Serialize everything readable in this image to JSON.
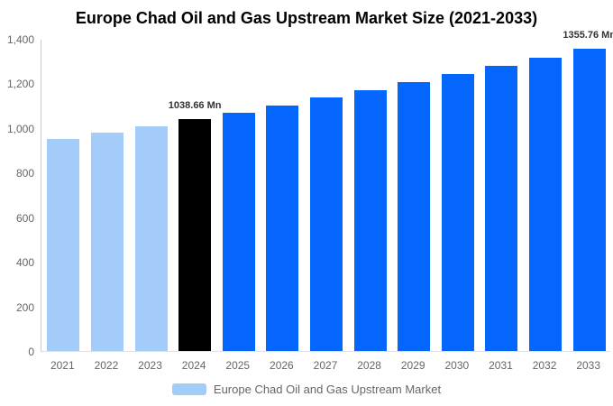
{
  "chart_data": {
    "type": "bar",
    "title": "Europe Chad Oil and Gas Upstream Market Size (2021-2033)",
    "unit": "Mn",
    "categories": [
      "2021",
      "2022",
      "2023",
      "2024",
      "2025",
      "2026",
      "2027",
      "2028",
      "2029",
      "2030",
      "2031",
      "2032",
      "2033"
    ],
    "values": [
      950.4,
      979.0,
      1008.4,
      1038.66,
      1069.9,
      1102.0,
      1135.2,
      1169.3,
      1204.5,
      1240.7,
      1278.0,
      1316.4,
      1355.76
    ],
    "bar_roles": [
      "historical",
      "historical",
      "historical",
      "highlight",
      "forecast",
      "forecast",
      "forecast",
      "forecast",
      "forecast",
      "forecast",
      "forecast",
      "forecast",
      "forecast"
    ],
    "data_labels": [
      {
        "category": "2024",
        "text": "1038.66 Mn"
      },
      {
        "category": "2033",
        "text": "1355.76 Mn"
      }
    ],
    "ylim": [
      0,
      1400
    ],
    "yticks": [
      {
        "value": 0,
        "label": "0"
      },
      {
        "value": 200,
        "label": "200"
      },
      {
        "value": 400,
        "label": "400"
      },
      {
        "value": 600,
        "label": "600"
      },
      {
        "value": 800,
        "label": "800"
      },
      {
        "value": 1000,
        "label": "1,000"
      },
      {
        "value": 1200,
        "label": "1,200"
      },
      {
        "value": 1400,
        "label": "1,400"
      }
    ],
    "grid": "off",
    "legend_position": "bottom",
    "legend": "Europe Chad Oil and Gas Upstream Market",
    "colors": {
      "historical": "#A3CCFA",
      "highlight": "#000000",
      "forecast": "#0566FE",
      "title_text": "#000000",
      "axis_label": "#666666",
      "data_label": "#333333",
      "axis_line": "#CCCCCC",
      "legend_text": "#666666"
    }
  }
}
